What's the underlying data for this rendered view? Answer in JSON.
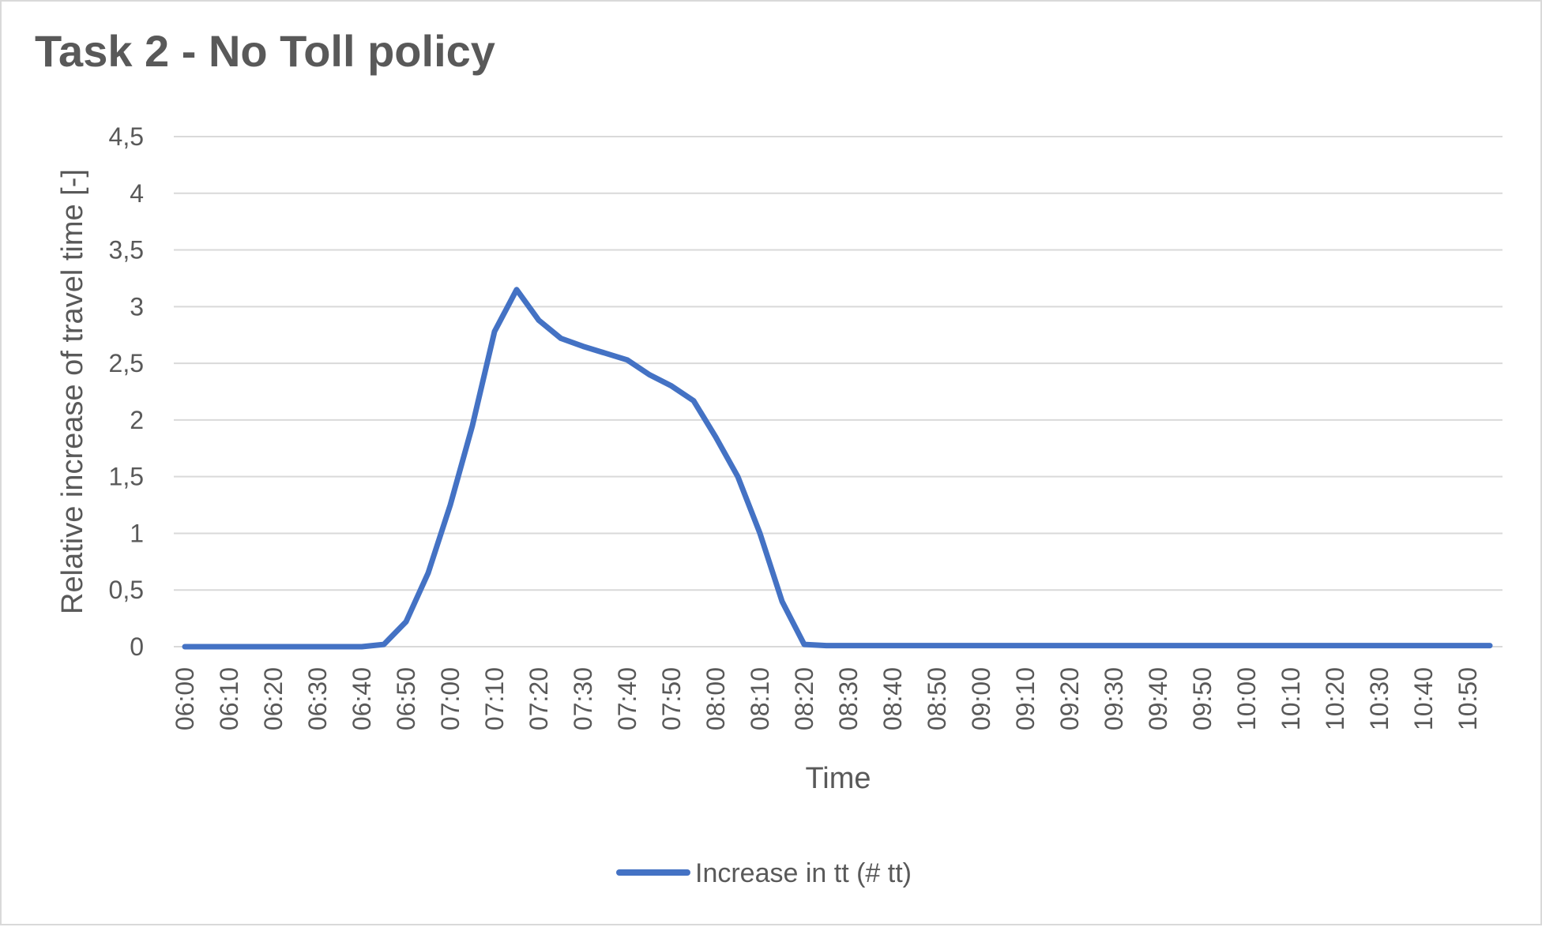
{
  "chart_data": {
    "type": "line",
    "title": "Task 2 - No Toll policy",
    "xlabel": "Time",
    "ylabel": "Relative increase of travel time [-]",
    "ylim": [
      0,
      4.5
    ],
    "y_ticks": [
      "0",
      "0,5",
      "1",
      "1,5",
      "2",
      "2,5",
      "3",
      "3,5",
      "4",
      "4,5"
    ],
    "grid": true,
    "legend_position": "bottom",
    "categories": [
      "06:00",
      "06:05",
      "06:10",
      "06:15",
      "06:20",
      "06:25",
      "06:30",
      "06:35",
      "06:40",
      "06:45",
      "06:50",
      "06:55",
      "07:00",
      "07:05",
      "07:10",
      "07:15",
      "07:20",
      "07:25",
      "07:30",
      "07:35",
      "07:40",
      "07:45",
      "07:50",
      "07:55",
      "08:00",
      "08:05",
      "08:10",
      "08:15",
      "08:20",
      "08:25",
      "08:30",
      "08:35",
      "08:40",
      "08:45",
      "08:50",
      "08:55",
      "09:00",
      "09:05",
      "09:10",
      "09:15",
      "09:20",
      "09:25",
      "09:30",
      "09:35",
      "09:40",
      "09:45",
      "09:50",
      "09:55",
      "10:00",
      "10:05",
      "10:10",
      "10:15",
      "10:20",
      "10:25",
      "10:30",
      "10:35",
      "10:40",
      "10:45",
      "10:50",
      "10:55"
    ],
    "x_tick_labels": [
      "06:00",
      "06:10",
      "06:20",
      "06:30",
      "06:40",
      "06:50",
      "07:00",
      "07:10",
      "07:20",
      "07:30",
      "07:40",
      "07:50",
      "08:00",
      "08:10",
      "08:20",
      "08:30",
      "08:40",
      "08:50",
      "09:00",
      "09:10",
      "09:20",
      "09:30",
      "09:40",
      "09:50",
      "10:00",
      "10:10",
      "10:20",
      "10:30",
      "10:40",
      "10:50"
    ],
    "series": [
      {
        "name": "Increase in tt (# tt)",
        "color": "#4472c4",
        "values": [
          0,
          0,
          0,
          0,
          0,
          0,
          0,
          0,
          0,
          0.02,
          0.22,
          0.65,
          1.25,
          1.95,
          2.78,
          3.15,
          2.88,
          2.72,
          2.65,
          2.59,
          2.53,
          2.4,
          2.3,
          2.17,
          1.85,
          1.5,
          1.0,
          0.4,
          0.02,
          0.01,
          0.01,
          0.01,
          0.01,
          0.01,
          0.01,
          0.01,
          0.01,
          0.01,
          0.01,
          0.01,
          0.01,
          0.01,
          0.01,
          0.01,
          0.01,
          0.01,
          0.01,
          0.01,
          0.01,
          0.01,
          0.01,
          0.01,
          0.01,
          0.01,
          0.01,
          0.01,
          0.01,
          0.01,
          0.01,
          0.01
        ]
      }
    ]
  }
}
